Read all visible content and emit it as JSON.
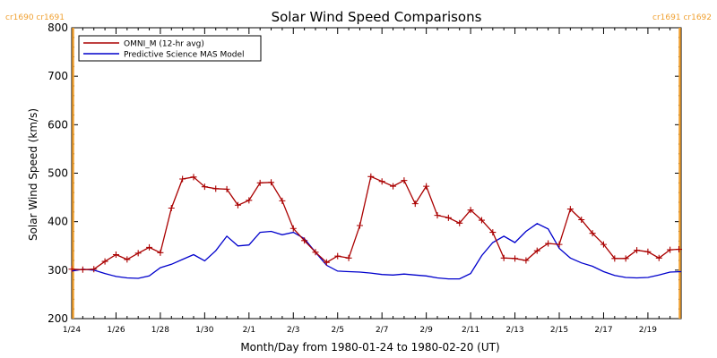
{
  "chart_data": {
    "type": "line",
    "title": "Solar Wind Speed Comparisons",
    "xlabel": "Month/Day from 1980-01-24 to 1980-02-20 (UT)",
    "ylabel": "Solar Wind Speed (km/s)",
    "ylim": [
      200,
      800
    ],
    "xlim": [
      0,
      27.5
    ],
    "yticks": [
      200,
      300,
      400,
      500,
      600,
      700,
      800
    ],
    "xticks": [
      {
        "x": 0,
        "label": "1/24"
      },
      {
        "x": 2,
        "label": "1/26"
      },
      {
        "x": 4,
        "label": "1/28"
      },
      {
        "x": 6,
        "label": "1/30"
      },
      {
        "x": 8,
        "label": "2/1"
      },
      {
        "x": 10,
        "label": "2/3"
      },
      {
        "x": 12,
        "label": "2/5"
      },
      {
        "x": 14,
        "label": "2/7"
      },
      {
        "x": 16,
        "label": "2/9"
      },
      {
        "x": 18,
        "label": "2/11"
      },
      {
        "x": 20,
        "label": "2/13"
      },
      {
        "x": 22,
        "label": "2/15"
      },
      {
        "x": 24,
        "label": "2/17"
      },
      {
        "x": 26,
        "label": "2/19"
      }
    ],
    "legend_position": "top-left",
    "grid": false,
    "rotations": [
      {
        "x": 0,
        "labels": [
          "cr1690",
          "cr1691"
        ],
        "color": "#f0a030"
      },
      {
        "x": 27.5,
        "labels": [
          "cr1691",
          "cr1692"
        ],
        "color": "#f0a030"
      }
    ],
    "series": [
      {
        "name": "OMNI_M (12-hr avg)",
        "color": "#aa0000",
        "marker": "plus",
        "x": [
          0,
          0.5,
          1,
          1.5,
          2,
          2.5,
          3,
          3.5,
          4,
          4.5,
          5,
          5.5,
          6,
          6.5,
          7,
          7.5,
          8,
          8.5,
          9,
          9.5,
          10,
          10.5,
          11,
          11.5,
          12,
          12.5,
          13,
          13.5,
          14,
          14.5,
          15,
          15.5,
          16,
          16.5,
          17,
          17.5,
          18,
          18.5,
          19,
          19.5,
          20,
          20.5,
          21,
          21.5,
          22,
          22.5,
          23,
          23.5,
          24,
          24.5,
          25,
          25.5,
          26,
          26.5,
          27,
          27.4
        ],
        "values": [
          302,
          301,
          302,
          318,
          332,
          322,
          335,
          347,
          336,
          428,
          488,
          492,
          472,
          468,
          467,
          434,
          444,
          480,
          481,
          443,
          386,
          361,
          337,
          316,
          329,
          325,
          392,
          493,
          483,
          473,
          485,
          437,
          473,
          413,
          408,
          397,
          424,
          403,
          378,
          325,
          324,
          320,
          340,
          355,
          353,
          426,
          404,
          376,
          353,
          324,
          324,
          341,
          338,
          325,
          342,
          343
        ]
      },
      {
        "name": "Predictive Science MAS Model",
        "color": "#0000cc",
        "marker": "none",
        "x": [
          0,
          0.5,
          1,
          1.5,
          2,
          2.5,
          3,
          3.5,
          4,
          4.5,
          5,
          5.5,
          6,
          6.5,
          7,
          7.5,
          8,
          8.5,
          9,
          9.5,
          10,
          10.5,
          11,
          11.5,
          12,
          12.5,
          13,
          13.5,
          14,
          14.5,
          15,
          15.5,
          16,
          16.5,
          17,
          17.5,
          18,
          18.5,
          19,
          19.5,
          20,
          20.5,
          21,
          21.5,
          22,
          22.5,
          23,
          23.5,
          24,
          24.5,
          25,
          25.5,
          26,
          26.5,
          27,
          27.5
        ],
        "values": [
          298,
          302,
          300,
          293,
          287,
          284,
          283,
          288,
          305,
          312,
          322,
          332,
          319,
          340,
          370,
          350,
          352,
          378,
          380,
          373,
          378,
          365,
          337,
          310,
          298,
          297,
          296,
          294,
          291,
          290,
          292,
          290,
          288,
          284,
          282,
          282,
          293,
          330,
          357,
          370,
          357,
          380,
          396,
          385,
          345,
          325,
          315,
          308,
          297,
          289,
          285,
          284,
          285,
          290,
          296,
          297
        ]
      }
    ]
  }
}
